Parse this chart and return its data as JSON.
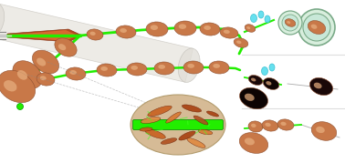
{
  "green_color": "#22ee00",
  "bead_brown": "#c87848",
  "bead_highlight": "#e8b080",
  "bead_shadow": "#905030",
  "tube_outer": "#e8e4dc",
  "tube_inner_brown": "#c05828",
  "tube_inner_orange": "#d87040",
  "cyan_color": "#55ddee",
  "dark_bead": "#1a0800",
  "oval_bg": "#d4b890",
  "go_colors": [
    "#c86020",
    "#a84010",
    "#d87830",
    "#b05020",
    "#e08840"
  ],
  "right_bg_top": "#f0f8f8",
  "right_bg_mid": "#f8f8f8",
  "right_bg_bot": "#f8f8f8",
  "circle_edge": "#7aaa88",
  "circle_fill": "#e8f4ee"
}
